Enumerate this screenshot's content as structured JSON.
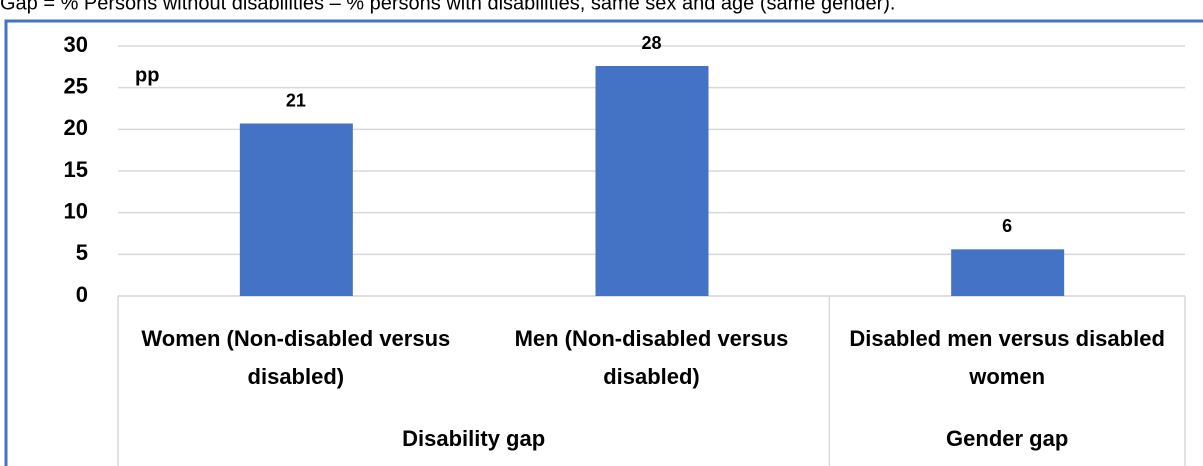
{
  "chart_data": {
    "type": "bar",
    "title": "Gap = % Persons without disabilities – % persons with disabilities, same sex and age (same gender).",
    "annotation": "pp",
    "categories": [
      "Women (Non-disabled versus disabled)",
      "Men (Non-disabled versus disabled)",
      "Disabled men versus disabled women"
    ],
    "groups": [
      "Disability gap",
      "Gender gap"
    ],
    "values": [
      20.7,
      27.6,
      5.6
    ],
    "value_labels": [
      "21",
      "28",
      "6"
    ],
    "color": "#4472c4",
    "ylim": [
      0,
      30
    ],
    "yticks": [
      0,
      5,
      10,
      15,
      20,
      25,
      30
    ],
    "grid": true
  }
}
